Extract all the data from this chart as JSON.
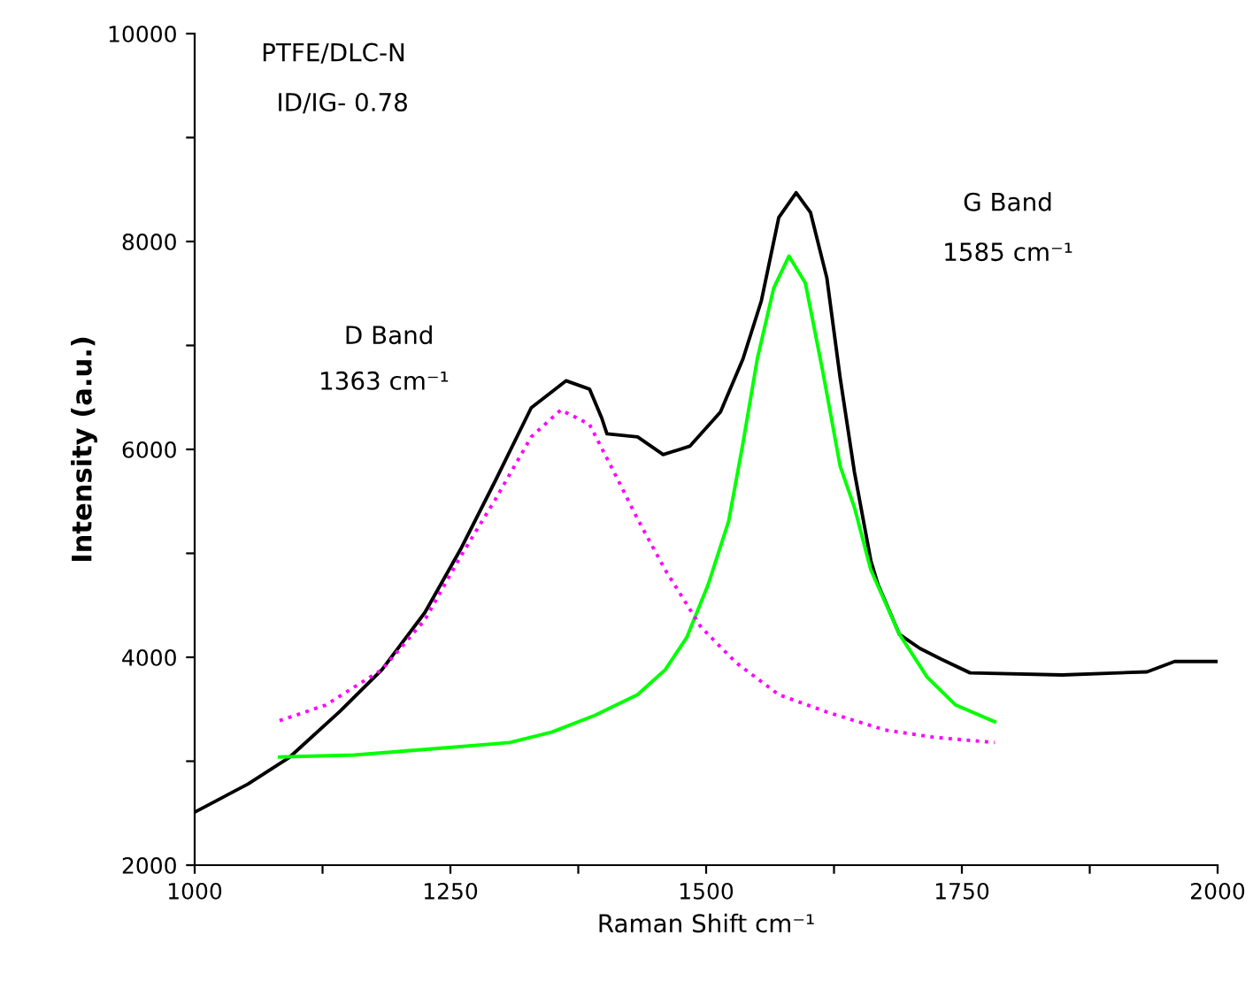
{
  "chart_data": {
    "type": "line",
    "xlabel": "Raman Shift cm⁻¹",
    "ylabel": "Intensity (a.u.)",
    "annotations": [
      "PTFE/DLC-N",
      "ID/IG- 0.78",
      "D Band",
      "1363 cm⁻¹",
      "G Band",
      "1585 cm⁻¹"
    ],
    "xlim": [
      1000,
      2000
    ],
    "ylim": [
      2000,
      10000
    ],
    "xticks": [
      1000,
      {
        "value": 1125,
        "label": null
      },
      1250,
      {
        "value": 1375,
        "label": null
      },
      1500,
      {
        "value": 1625,
        "label": null
      },
      1750,
      {
        "value": 1875,
        "label": null
      },
      2000
    ],
    "yticks": [
      2000,
      {
        "value": 3000,
        "label": null
      },
      4000,
      {
        "value": 5000,
        "label": null
      },
      6000,
      {
        "value": 7000,
        "label": null
      },
      8000,
      {
        "value": 9000,
        "label": null
      },
      10000
    ],
    "grid": false,
    "legend": false,
    "series": [
      {
        "color": "#000000",
        "line_style": "solid",
        "x": [
          1000,
          1052,
          1093,
          1142,
          1183,
          1225,
          1260,
          1294,
          1329,
          1363,
          1386,
          1398,
          1403,
          1433,
          1458,
          1484,
          1514,
          1536,
          1554,
          1571,
          1588,
          1602,
          1618,
          1631,
          1645,
          1661,
          1668,
          1689,
          1709,
          1730,
          1758,
          1848,
          1931,
          1958,
          2000
        ],
        "values": [
          2510,
          2780,
          3040,
          3480,
          3880,
          4430,
          5040,
          5700,
          6400,
          6660,
          6580,
          6300,
          6150,
          6120,
          5950,
          6030,
          6360,
          6870,
          7430,
          8230,
          8470,
          8280,
          7650,
          6690,
          5780,
          4930,
          4700,
          4220,
          4085,
          3980,
          3850,
          3830,
          3860,
          3960,
          3960
        ]
      },
      {
        "color": "#00ff00",
        "line_style": "solid",
        "x": [
          1083,
          1156,
          1246,
          1308,
          1349,
          1391,
          1433,
          1460,
          1481,
          1502,
          1522,
          1536,
          1550,
          1566,
          1581,
          1597,
          1614,
          1631,
          1645,
          1661,
          1689,
          1716,
          1744,
          1782
        ],
        "values": [
          3040,
          3060,
          3130,
          3180,
          3280,
          3440,
          3640,
          3880,
          4190,
          4700,
          5310,
          6060,
          6870,
          7550,
          7860,
          7600,
          6750,
          5840,
          5440,
          4840,
          4220,
          3810,
          3540,
          3380
        ]
      },
      {
        "color": "#ff00ff",
        "line_style": "dotted",
        "x": [
          1083,
          1128,
          1183,
          1225,
          1260,
          1294,
          1329,
          1358,
          1386,
          1410,
          1433,
          1460,
          1495,
          1529,
          1571,
          1619,
          1675,
          1723,
          1782
        ],
        "values": [
          3390,
          3540,
          3880,
          4360,
          4970,
          5520,
          6120,
          6380,
          6240,
          5780,
          5330,
          4840,
          4290,
          3950,
          3640,
          3470,
          3300,
          3230,
          3180
        ]
      }
    ]
  }
}
